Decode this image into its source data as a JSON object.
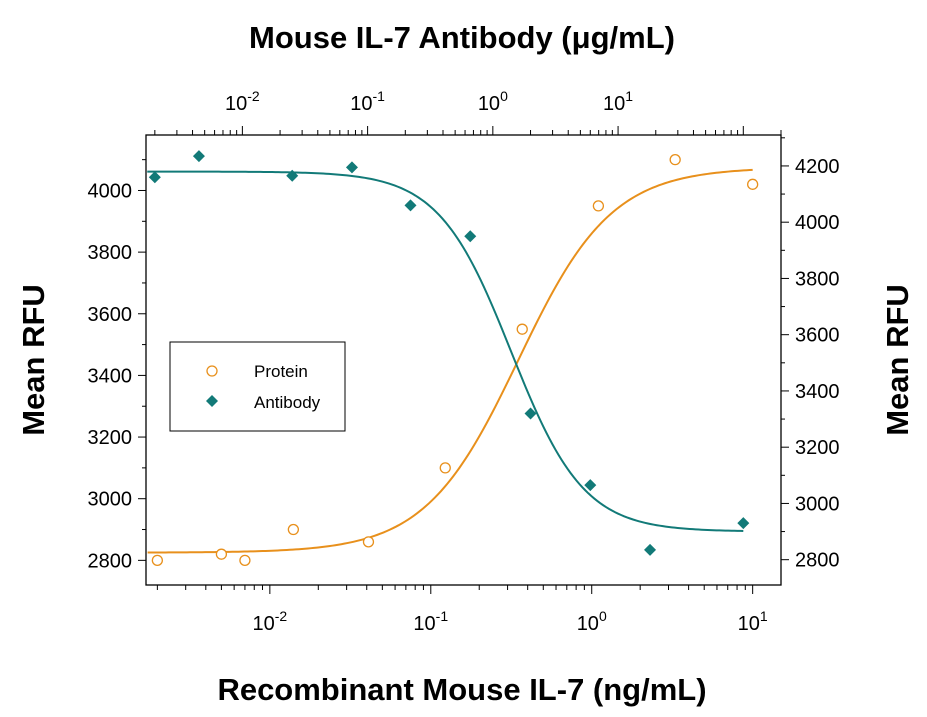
{
  "chart_data": {
    "type": "scatter",
    "title": "",
    "x_bottom": {
      "label": "Recombinant Mouse IL-7 (ng/mL)",
      "scale": "log",
      "range": [
        0.0017,
        15
      ],
      "ticks": [
        {
          "value": 0.01,
          "base": "10",
          "exp": "-2"
        },
        {
          "value": 0.1,
          "base": "10",
          "exp": "-1"
        },
        {
          "value": 1,
          "base": "10",
          "exp": "0"
        },
        {
          "value": 10,
          "base": "10",
          "exp": "1"
        }
      ]
    },
    "x_top": {
      "label": "Mouse IL-7 Antibody (μg/mL)",
      "scale": "log",
      "range": [
        0.0017,
        200
      ],
      "ticks": [
        {
          "value": 0.01,
          "base": "10",
          "exp": "-2"
        },
        {
          "value": 0.1,
          "base": "10",
          "exp": "-1"
        },
        {
          "value": 1,
          "base": "10",
          "exp": "0"
        },
        {
          "value": 10,
          "base": "10",
          "exp": "1"
        }
      ]
    },
    "y_left": {
      "label": "Mean RFU",
      "range": [
        2720,
        4180
      ],
      "ticks": [
        2800,
        3000,
        3200,
        3400,
        3600,
        3800,
        4000
      ]
    },
    "y_right": {
      "label": "Mean RFU",
      "range": [
        2710,
        4310
      ],
      "ticks": [
        2800,
        3000,
        3200,
        3400,
        3600,
        3800,
        4000,
        4200
      ]
    },
    "legend": {
      "placement": "middle-left",
      "entries": [
        {
          "label": "Protein",
          "marker": "open-circle",
          "color": "#e8901c"
        },
        {
          "label": "Antibody",
          "marker": "filled-diamond",
          "color": "#127a78"
        }
      ]
    },
    "series": [
      {
        "name": "Protein",
        "x_axis": "bottom",
        "y_axis": "left",
        "color": "#e8901c",
        "marker": "open-circle",
        "points": [
          {
            "x": 0.002,
            "y": 2800
          },
          {
            "x": 0.005,
            "y": 2820
          },
          {
            "x": 0.007,
            "y": 2800
          },
          {
            "x": 0.014,
            "y": 2900
          },
          {
            "x": 0.041,
            "y": 2860
          },
          {
            "x": 0.123,
            "y": 3100
          },
          {
            "x": 0.37,
            "y": 3550
          },
          {
            "x": 1.1,
            "y": 3950
          },
          {
            "x": 3.3,
            "y": 4100
          },
          {
            "x": 10,
            "y": 4020
          }
        ],
        "fit": {
          "bottom": 2825,
          "top": 4075,
          "ec50": 0.35,
          "hill": 1.5
        }
      },
      {
        "name": "Antibody",
        "x_axis": "top",
        "y_axis": "right",
        "color": "#127a78",
        "marker": "filled-diamond",
        "points": [
          {
            "x": 0.002,
            "y": 4160
          },
          {
            "x": 0.0045,
            "y": 4235
          },
          {
            "x": 0.025,
            "y": 4165
          },
          {
            "x": 0.075,
            "y": 4195
          },
          {
            "x": 0.22,
            "y": 4060
          },
          {
            "x": 0.66,
            "y": 3950
          },
          {
            "x": 2.0,
            "y": 3320
          },
          {
            "x": 6.0,
            "y": 3065
          },
          {
            "x": 18,
            "y": 2835
          },
          {
            "x": 100,
            "y": 2930
          }
        ],
        "fit": {
          "bottom": 2900,
          "top": 4180,
          "ec50": 1.4,
          "hill": 1.5
        }
      }
    ]
  }
}
